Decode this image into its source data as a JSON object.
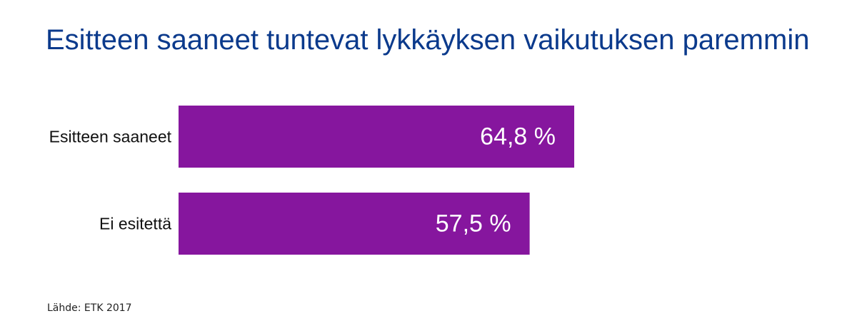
{
  "chart_data": {
    "type": "bar",
    "orientation": "horizontal",
    "title": "Esitteen saaneet tuntevat lykkäyksen vaikutuksen paremmin",
    "categories": [
      "Esitteen saaneet",
      "Ei esitettä"
    ],
    "values": [
      64.8,
      57.5
    ],
    "value_labels": [
      "64,8 %",
      "57,5 %"
    ],
    "unit": "%",
    "xlim": [
      0,
      100
    ],
    "grid": false,
    "legend": "none",
    "bar_color": "#86169e",
    "title_color": "#0b3a8c"
  },
  "source": "Lähde: ETK 2017"
}
